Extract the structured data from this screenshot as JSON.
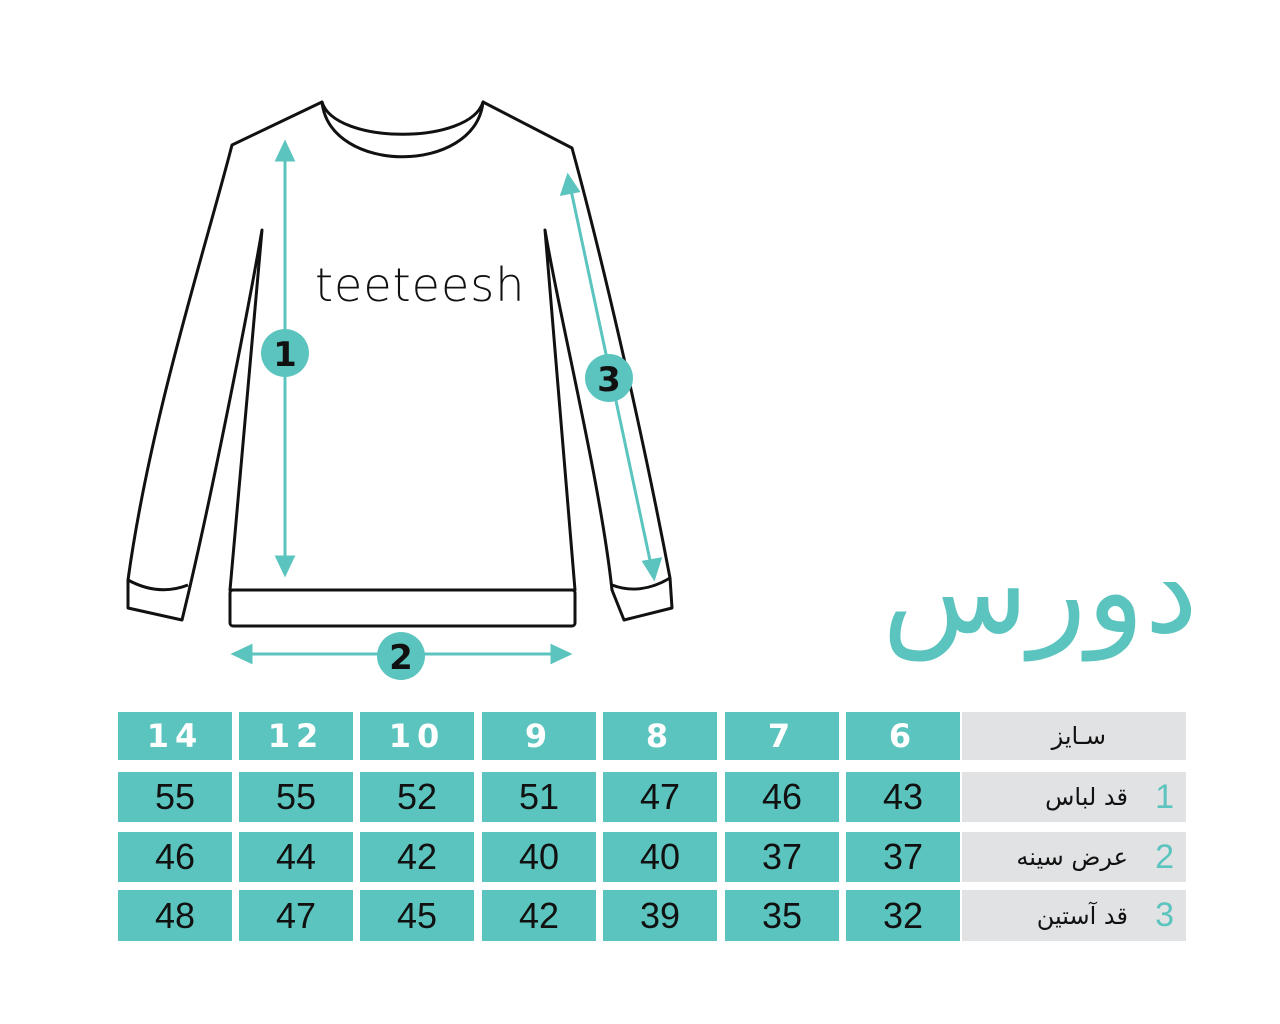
{
  "brand": "teeteesh",
  "title": "دورس",
  "colors": {
    "accent": "#5bc4be",
    "label_bg": "#e1e2e4"
  },
  "markers": [
    "1",
    "2",
    "3"
  ],
  "table": {
    "header_label": "سـایز",
    "sizes": [
      "14",
      "12",
      "10",
      "9",
      "8",
      "7",
      "6"
    ],
    "rows": [
      {
        "num": "1",
        "label": "قد لباس",
        "values": [
          "55",
          "55",
          "52",
          "51",
          "47",
          "46",
          "43"
        ]
      },
      {
        "num": "2",
        "label": "عرض سینه",
        "values": [
          "46",
          "44",
          "42",
          "40",
          "40",
          "37",
          "37"
        ]
      },
      {
        "num": "3",
        "label": "قد آستین",
        "values": [
          "48",
          "47",
          "45",
          "42",
          "39",
          "35",
          "32"
        ]
      }
    ]
  }
}
